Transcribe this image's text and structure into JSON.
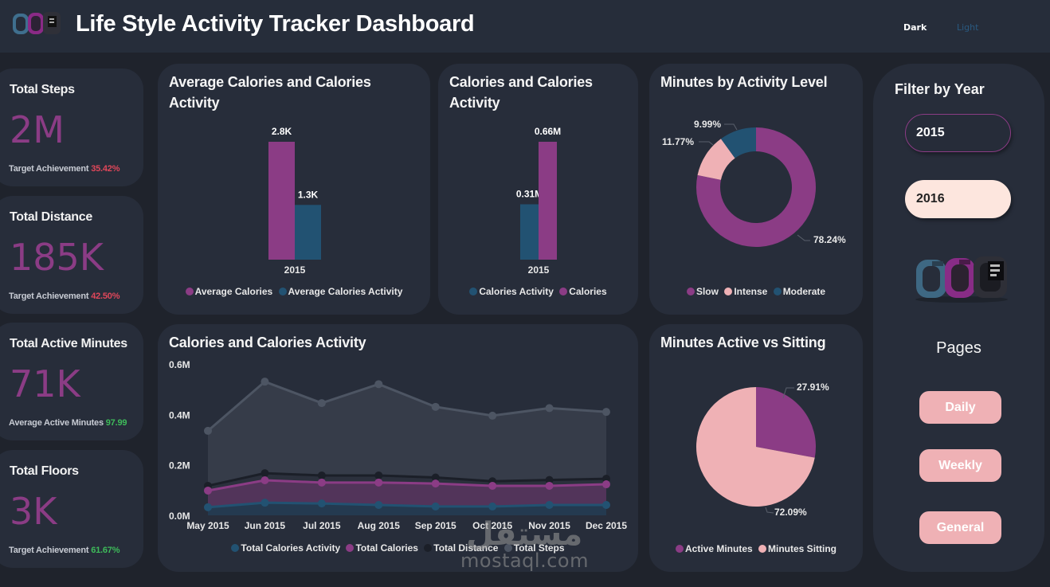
{
  "header": {
    "title": "Life Style Activity Tracker Dashboard",
    "logo_icon": "fitness-bands-image",
    "theme_dark": "Dark",
    "theme_light": "Light"
  },
  "kpis": [
    {
      "title": "Total Steps",
      "value": "2M",
      "sub_label": "Target Achievement",
      "sub_value": "35.42%",
      "sub_color": "#e0475a"
    },
    {
      "title": "Total Distance",
      "value": "185K",
      "sub_label": "Target Achievement",
      "sub_value": "42.50%",
      "sub_color": "#e0475a"
    },
    {
      "title": "Total Active Minutes",
      "value": "71K",
      "sub_label": "Average Active Minutes",
      "sub_value": "97.99",
      "sub_color": "#3ebb5a"
    },
    {
      "title": "Total Floors",
      "value": "3K",
      "sub_label": "Target Achievement",
      "sub_value": "61.67%",
      "sub_color": "#3ebb5a"
    }
  ],
  "colors": {
    "purple": "#8b3c85",
    "blue": "#225272",
    "pink": "#efb1b5",
    "gray": "#4d5563",
    "dark": "#1b1f28",
    "card": "#272d3a",
    "background": "#1f232c"
  },
  "chart_data": [
    {
      "id": "avg-calories",
      "type": "bar",
      "title": "Average Calories and Calories Activity",
      "categories": [
        "2015"
      ],
      "series": [
        {
          "name": "Average Calories",
          "values": [
            2800
          ],
          "label": "2.8K",
          "color": "#8b3c85"
        },
        {
          "name": "Average Calories Activity",
          "values": [
            1300
          ],
          "label": "1.3K",
          "color": "#225272"
        }
      ],
      "ylim": [
        0,
        2800
      ]
    },
    {
      "id": "calories-bar",
      "type": "bar",
      "title": "Calories and Calories Activity",
      "categories": [
        "2015"
      ],
      "series": [
        {
          "name": "Calories Activity",
          "values": [
            310000
          ],
          "label": "0.31M",
          "color": "#225272"
        },
        {
          "name": "Calories",
          "values": [
            660000
          ],
          "label": "0.66M",
          "color": "#8b3c85"
        }
      ],
      "ylim": [
        0,
        660000
      ]
    },
    {
      "id": "minutes-activity-level",
      "type": "pie",
      "donut": true,
      "title": "Minutes by Activity Level",
      "slices": [
        {
          "name": "Slow",
          "value": 78.24,
          "label": "78.24%",
          "color": "#8b3c85"
        },
        {
          "name": "Intense",
          "value": 11.77,
          "label": "11.77%",
          "color": "#efb1b5"
        },
        {
          "name": "Moderate",
          "value": 9.99,
          "label": "9.99%",
          "color": "#225272"
        }
      ],
      "legend_order": [
        "Slow",
        "Intense",
        "Moderate"
      ]
    },
    {
      "id": "active-vs-sitting",
      "type": "pie",
      "donut": false,
      "title": "Minutes Active vs Sitting",
      "slices": [
        {
          "name": "Active Minutes",
          "value": 27.91,
          "label": "27.91%",
          "color": "#8b3c85"
        },
        {
          "name": "Minutes Sitting",
          "value": 72.09,
          "label": "72.09%",
          "color": "#efb1b5"
        }
      ]
    },
    {
      "id": "monthly-area",
      "type": "area",
      "title": "Calories and Calories Activity",
      "x": [
        "May 2015",
        "Jun 2015",
        "Jul 2015",
        "Aug 2015",
        "Sep 2015",
        "Oct 2015",
        "Nov 2015",
        "Dec 2015"
      ],
      "yticks": [
        "0.0M",
        "0.2M",
        "0.4M",
        "0.6M"
      ],
      "ylim": [
        0,
        600000
      ],
      "grid": false,
      "legend_position": "bottom",
      "series": [
        {
          "name": "Total Steps",
          "color": "#4d5563",
          "fill": "#363c49",
          "values": [
            335000,
            530000,
            445000,
            520000,
            430000,
            395000,
            425000,
            410000
          ]
        },
        {
          "name": "Total Distance",
          "color": "#1b1f28",
          "fill": "#2b303c",
          "values": [
            117000,
            167000,
            158000,
            158000,
            150000,
            135000,
            140000,
            145000
          ]
        },
        {
          "name": "Total Calories",
          "color": "#8b3c85",
          "fill": "#52345a",
          "values": [
            98000,
            139000,
            130000,
            130000,
            126000,
            117000,
            117000,
            123000
          ]
        },
        {
          "name": "Total Calories Activity",
          "color": "#225272",
          "fill": "#243a50",
          "values": [
            32000,
            50000,
            47000,
            41000,
            35000,
            35000,
            41000,
            41000
          ]
        }
      ],
      "legend_order": [
        "Total Calories Activity",
        "Total Calories",
        "Total Distance",
        "Total Steps"
      ]
    }
  ],
  "filter": {
    "title": "Filter by Year",
    "years": [
      "2015",
      "2016"
    ],
    "selected": "2015",
    "image": "fitness-bands-image"
  },
  "pages": {
    "title": "Pages",
    "buttons": [
      "Daily",
      "Weekly",
      "General"
    ]
  },
  "watermark": {
    "arabic": "مستقل",
    "latin": "mostaql.com"
  }
}
